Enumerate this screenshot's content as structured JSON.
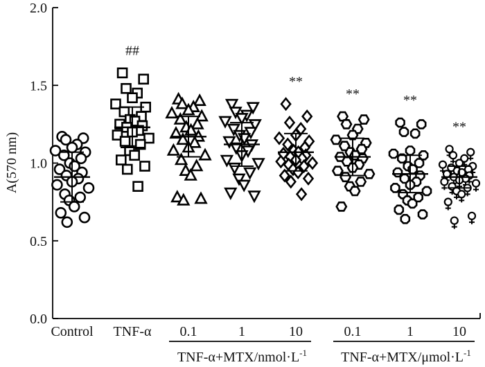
{
  "chart_data": {
    "type": "scatter",
    "subtype": "dot-plot-with-mean-and-sd",
    "ylabel": "A(570 nm)",
    "ylim": [
      0.0,
      2.0
    ],
    "yticks": [
      0.0,
      0.5,
      1.0,
      1.5,
      2.0
    ],
    "ytick_labels": [
      "0.0",
      "0.5",
      "1.0",
      "1.5",
      "2.0"
    ],
    "categories": [
      "Control",
      "TNF-α",
      "0.1",
      "1",
      "10",
      "0.1",
      "1",
      "10"
    ],
    "group_labels": [
      {
        "text": "TNF-α+MTX/nmol·L",
        "sup": "-1",
        "spans": [
          2,
          4
        ]
      },
      {
        "text": "TNF-α+MTX/μmol·L",
        "sup": "-1",
        "spans": [
          5,
          7
        ]
      }
    ],
    "significance": [
      "",
      "##",
      "",
      "",
      "**",
      "**",
      "**",
      "**"
    ],
    "series": [
      {
        "marker": "circle",
        "mean": 0.91,
        "sd": 0.16,
        "values": [
          1.17,
          1.16,
          1.15,
          1.12,
          1.1,
          1.08,
          1.07,
          1.05,
          1.03,
          1.0,
          0.98,
          0.96,
          0.94,
          0.92,
          0.9,
          0.88,
          0.86,
          0.84,
          0.8,
          0.78,
          0.76,
          0.72,
          0.68,
          0.65,
          0.62
        ]
      },
      {
        "marker": "square",
        "mean": 1.23,
        "sd": 0.13,
        "values": [
          1.58,
          1.54,
          1.48,
          1.45,
          1.42,
          1.38,
          1.36,
          1.33,
          1.3,
          1.28,
          1.27,
          1.25,
          1.24,
          1.23,
          1.21,
          1.2,
          1.18,
          1.16,
          1.14,
          1.12,
          1.08,
          1.05,
          1.02,
          0.98,
          0.96,
          0.85
        ]
      },
      {
        "marker": "triangle-up",
        "mean": 1.17,
        "sd": 0.13,
        "values": [
          1.41,
          1.4,
          1.38,
          1.36,
          1.34,
          1.32,
          1.3,
          1.28,
          1.25,
          1.23,
          1.21,
          1.19,
          1.17,
          1.15,
          1.13,
          1.1,
          1.08,
          1.05,
          1.02,
          0.98,
          0.95,
          0.92,
          0.78,
          0.77,
          0.76
        ]
      },
      {
        "marker": "triangle-down",
        "mean": 1.12,
        "sd": 0.14,
        "values": [
          1.38,
          1.36,
          1.33,
          1.31,
          1.29,
          1.27,
          1.25,
          1.22,
          1.2,
          1.18,
          1.16,
          1.14,
          1.12,
          1.1,
          1.08,
          1.05,
          1.02,
          1.0,
          0.97,
          0.94,
          0.9,
          0.86,
          0.81,
          0.79
        ]
      },
      {
        "marker": "diamond",
        "mean": 1.07,
        "sd": 0.12,
        "values": [
          1.38,
          1.3,
          1.26,
          1.22,
          1.18,
          1.16,
          1.14,
          1.12,
          1.1,
          1.08,
          1.07,
          1.06,
          1.05,
          1.04,
          1.03,
          1.02,
          1.01,
          1.0,
          0.99,
          0.98,
          0.96,
          0.94,
          0.92,
          0.9,
          0.88,
          0.8
        ]
      },
      {
        "marker": "hexagon",
        "mean": 1.04,
        "sd": 0.12,
        "values": [
          1.3,
          1.28,
          1.25,
          1.22,
          1.18,
          1.15,
          1.13,
          1.11,
          1.09,
          1.07,
          1.05,
          1.04,
          1.03,
          1.01,
          0.99,
          0.97,
          0.95,
          0.93,
          0.91,
          0.88,
          0.85,
          0.82,
          0.72
        ]
      },
      {
        "marker": "octagon",
        "mean": 0.93,
        "sd": 0.12,
        "values": [
          1.26,
          1.25,
          1.2,
          1.19,
          1.08,
          1.06,
          1.05,
          1.03,
          1.0,
          0.98,
          0.96,
          0.94,
          0.92,
          0.9,
          0.88,
          0.86,
          0.84,
          0.82,
          0.8,
          0.78,
          0.76,
          0.74,
          0.7,
          0.67,
          0.64
        ]
      },
      {
        "marker": "female",
        "mean": 0.91,
        "sd": 0.07,
        "values": [
          1.09,
          1.07,
          1.05,
          1.03,
          1.0,
          0.99,
          0.98,
          0.97,
          0.96,
          0.95,
          0.94,
          0.93,
          0.92,
          0.91,
          0.9,
          0.89,
          0.88,
          0.87,
          0.85,
          0.84,
          0.82,
          0.8,
          0.75,
          0.66,
          0.63
        ]
      }
    ]
  }
}
